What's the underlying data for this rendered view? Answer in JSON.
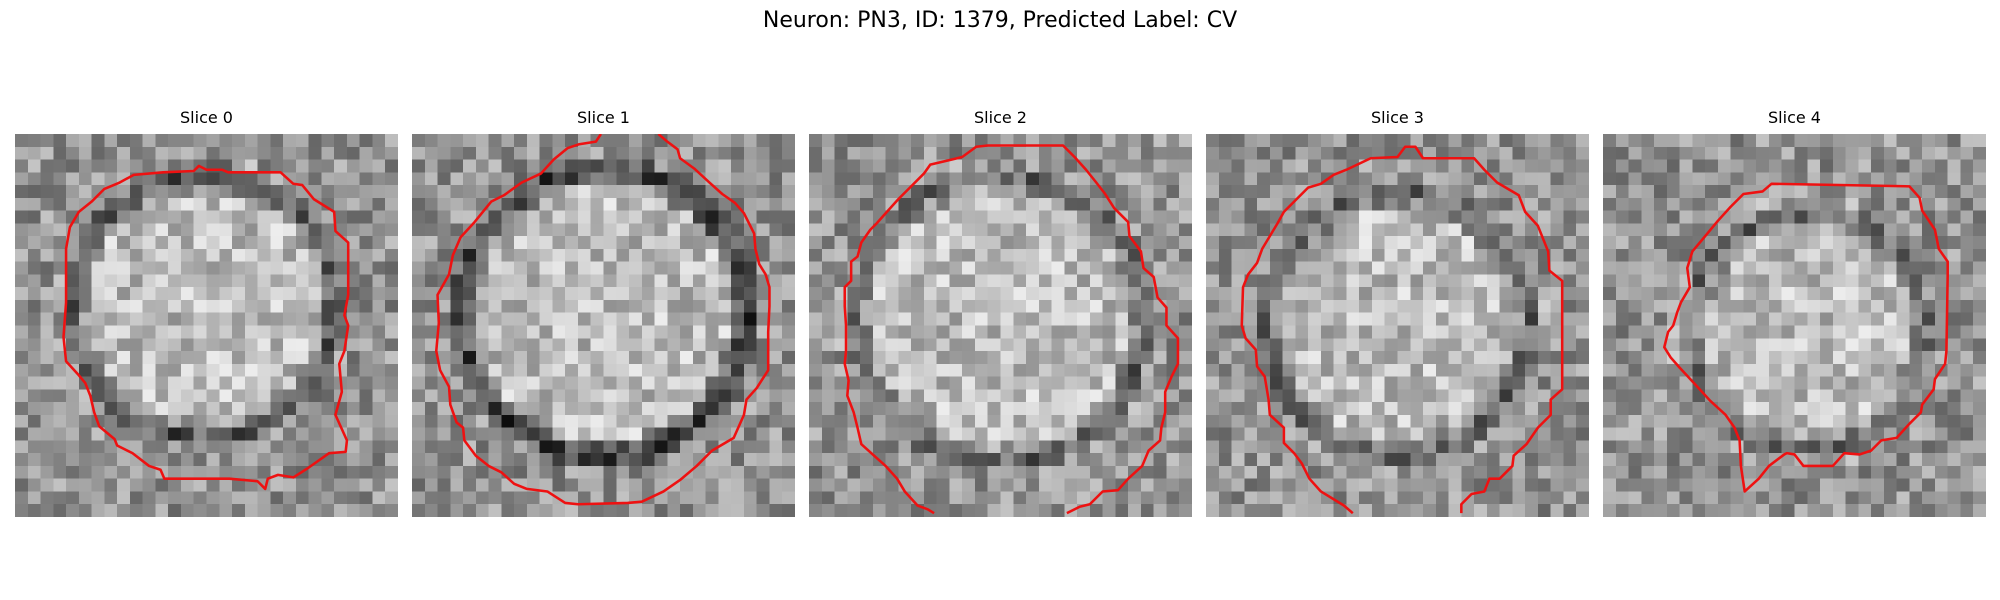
{
  "figure": {
    "title": "Neuron: PN3, ID: 1379, Predicted Label: CV"
  },
  "slices": [
    {
      "title": "Slice 0"
    },
    {
      "title": "Slice 1"
    },
    {
      "title": "Slice 2"
    },
    {
      "title": "Slice 3"
    },
    {
      "title": "Slice 4"
    }
  ],
  "colors": {
    "contour": "#ee1111",
    "background": "#ffffff"
  }
}
